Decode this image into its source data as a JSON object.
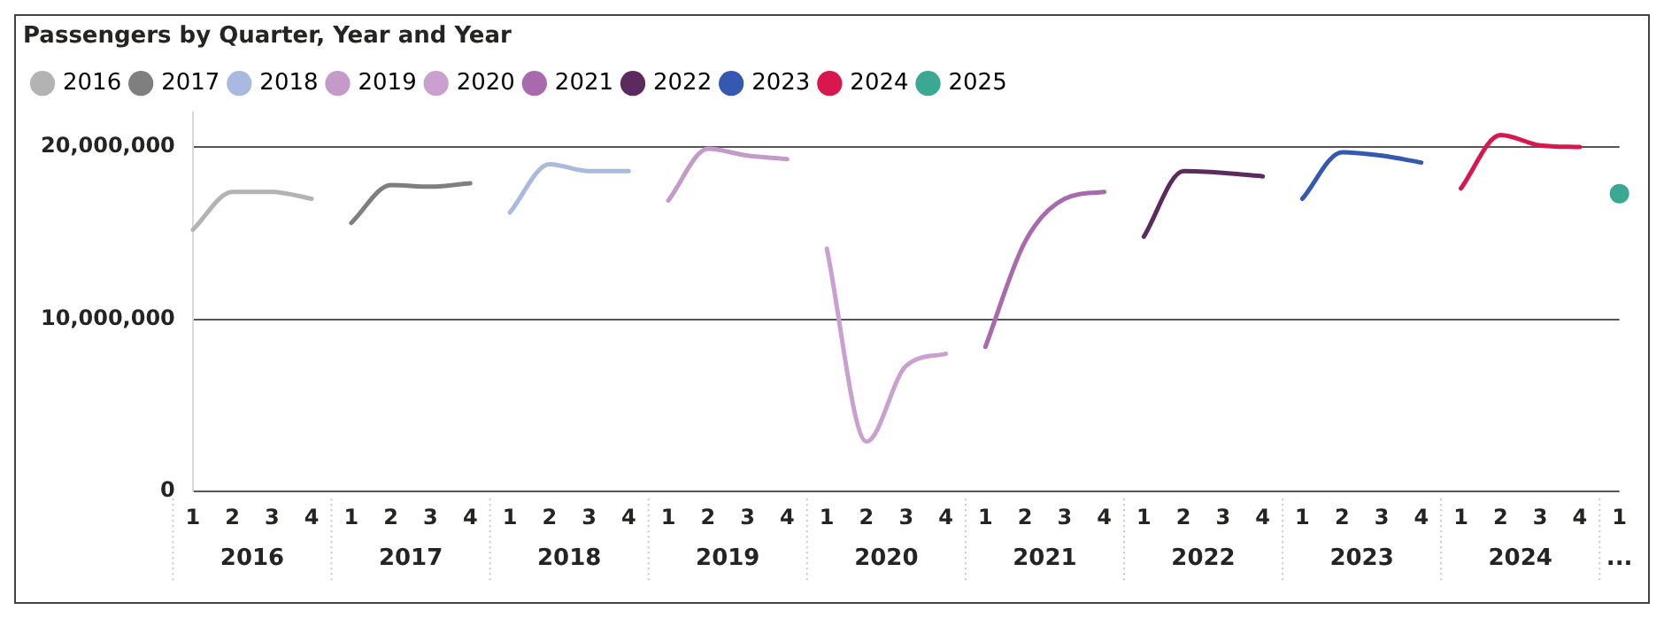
{
  "chart_data": {
    "type": "line",
    "title": "Passengers by Quarter, Year and Year",
    "categories": [
      "1",
      "2",
      "3",
      "4",
      "1",
      "2",
      "3",
      "4",
      "1",
      "2",
      "3",
      "4",
      "1",
      "2",
      "3",
      "4",
      "1",
      "2",
      "3",
      "4",
      "1",
      "2",
      "3",
      "4",
      "1",
      "2",
      "3",
      "4",
      "1",
      "2",
      "3",
      "4",
      "1",
      "2",
      "3",
      "4",
      "1"
    ],
    "annotations": [
      "2016",
      "2017",
      "2018",
      "2019",
      "2020",
      "2021",
      "2022",
      "2023",
      "2024",
      "..."
    ],
    "series": [
      {
        "name": "2016",
        "color": "#b3b3b3",
        "values": [
          15200000,
          17400000,
          17400000,
          17000000,
          null,
          null,
          null,
          null,
          null,
          null,
          null,
          null,
          null,
          null,
          null,
          null,
          null,
          null,
          null,
          null,
          null,
          null,
          null,
          null,
          null,
          null,
          null,
          null,
          null,
          null,
          null,
          null,
          null,
          null,
          null,
          null,
          null
        ]
      },
      {
        "name": "2017",
        "color": "#7f7f7f",
        "values": [
          null,
          null,
          null,
          null,
          15600000,
          17800000,
          17700000,
          17900000,
          null,
          null,
          null,
          null,
          null,
          null,
          null,
          null,
          null,
          null,
          null,
          null,
          null,
          null,
          null,
          null,
          null,
          null,
          null,
          null,
          null,
          null,
          null,
          null,
          null,
          null,
          null,
          null,
          null
        ]
      },
      {
        "name": "2018",
        "color": "#a9b9e0",
        "values": [
          null,
          null,
          null,
          null,
          null,
          null,
          null,
          null,
          16200000,
          19000000,
          18600000,
          18600000,
          null,
          null,
          null,
          null,
          null,
          null,
          null,
          null,
          null,
          null,
          null,
          null,
          null,
          null,
          null,
          null,
          null,
          null,
          null,
          null,
          null,
          null,
          null,
          null,
          null
        ]
      },
      {
        "name": "2019",
        "color": "#c49ac9",
        "values": [
          null,
          null,
          null,
          null,
          null,
          null,
          null,
          null,
          null,
          null,
          null,
          null,
          16900000,
          19900000,
          19500000,
          19300000,
          null,
          null,
          null,
          null,
          null,
          null,
          null,
          null,
          null,
          null,
          null,
          null,
          null,
          null,
          null,
          null,
          null,
          null,
          null,
          null,
          null
        ]
      },
      {
        "name": "2020",
        "color": "#c9a0cf",
        "values": [
          null,
          null,
          null,
          null,
          null,
          null,
          null,
          null,
          null,
          null,
          null,
          null,
          null,
          null,
          null,
          null,
          14100000,
          2900000,
          7300000,
          8000000,
          null,
          null,
          null,
          null,
          null,
          null,
          null,
          null,
          null,
          null,
          null,
          null,
          null,
          null,
          null,
          null,
          null
        ]
      },
      {
        "name": "2021",
        "color": "#a86aad",
        "values": [
          null,
          null,
          null,
          null,
          null,
          null,
          null,
          null,
          null,
          null,
          null,
          null,
          null,
          null,
          null,
          null,
          null,
          null,
          null,
          null,
          8400000,
          14500000,
          17000000,
          17400000,
          null,
          null,
          null,
          null,
          null,
          null,
          null,
          null,
          null,
          null,
          null,
          null,
          null
        ]
      },
      {
        "name": "2022",
        "color": "#5c2a5e",
        "values": [
          null,
          null,
          null,
          null,
          null,
          null,
          null,
          null,
          null,
          null,
          null,
          null,
          null,
          null,
          null,
          null,
          null,
          null,
          null,
          null,
          null,
          null,
          null,
          null,
          14800000,
          18600000,
          18500000,
          18300000,
          null,
          null,
          null,
          null,
          null,
          null,
          null,
          null,
          null
        ]
      },
      {
        "name": "2023",
        "color": "#3559b0",
        "values": [
          null,
          null,
          null,
          null,
          null,
          null,
          null,
          null,
          null,
          null,
          null,
          null,
          null,
          null,
          null,
          null,
          null,
          null,
          null,
          null,
          null,
          null,
          null,
          null,
          null,
          null,
          null,
          null,
          17000000,
          19700000,
          19500000,
          19100000,
          null,
          null,
          null,
          null,
          null
        ]
      },
      {
        "name": "2024",
        "color": "#d9174f",
        "values": [
          null,
          null,
          null,
          null,
          null,
          null,
          null,
          null,
          null,
          null,
          null,
          null,
          null,
          null,
          null,
          null,
          null,
          null,
          null,
          null,
          null,
          null,
          null,
          null,
          null,
          null,
          null,
          null,
          null,
          null,
          null,
          null,
          17600000,
          20700000,
          20100000,
          20000000,
          null
        ]
      },
      {
        "name": "2025",
        "type": "scatter",
        "marker": "circle",
        "color": "#3aa892",
        "values": [
          null,
          null,
          null,
          null,
          null,
          null,
          null,
          null,
          null,
          null,
          null,
          null,
          null,
          null,
          null,
          null,
          null,
          null,
          null,
          null,
          null,
          null,
          null,
          null,
          null,
          null,
          null,
          null,
          null,
          null,
          null,
          null,
          null,
          null,
          null,
          null,
          17300000
        ]
      }
    ],
    "ylim": [
      0,
      22000000
    ],
    "yticks": [
      0,
      {
        "value": 10000000,
        "label": "10,000,000"
      },
      {
        "value": 20000000,
        "label": "20,000,000"
      }
    ],
    "grid": "y",
    "legend": "top left",
    "marker": "none",
    "line_style": "solid"
  }
}
